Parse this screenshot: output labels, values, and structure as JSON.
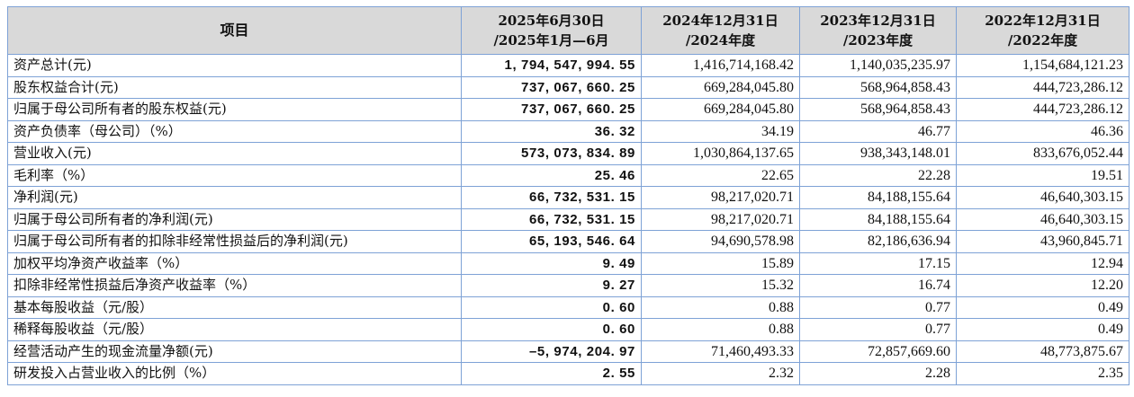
{
  "header": {
    "item": "项目",
    "cols": [
      {
        "l1": "2025年6月30日",
        "l2": "/2025年1月—6月"
      },
      {
        "l1": "2024年12月31日",
        "l2": "/2024年度"
      },
      {
        "l1": "2023年12月31日",
        "l2": "/2023年度"
      },
      {
        "l1": "2022年12月31日",
        "l2": "/2022年度"
      }
    ]
  },
  "rows": [
    {
      "label": "资产总计(元)",
      "v": [
        "1, 794, 547, 994. 55",
        "1,416,714,168.42",
        "1,140,035,235.97",
        "1,154,684,121.23"
      ]
    },
    {
      "label": "股东权益合计(元)",
      "v": [
        "737, 067, 660. 25",
        "669,284,045.80",
        "568,964,858.43",
        "444,723,286.12"
      ]
    },
    {
      "label": "归属于母公司所有者的股东权益(元)",
      "v": [
        "737, 067, 660. 25",
        "669,284,045.80",
        "568,964,858.43",
        "444,723,286.12"
      ]
    },
    {
      "label": "资产负债率（母公司）（%）",
      "v": [
        "36. 32",
        "34.19",
        "46.77",
        "46.36"
      ]
    },
    {
      "label": "营业收入(元)",
      "v": [
        "573, 073, 834. 89",
        "1,030,864,137.65",
        "938,343,148.01",
        "833,676,052.44"
      ]
    },
    {
      "label": "毛利率（%）",
      "v": [
        "25. 46",
        "22.65",
        "22.28",
        "19.51"
      ]
    },
    {
      "label": "净利润(元)",
      "v": [
        "66, 732, 531. 15",
        "98,217,020.71",
        "84,188,155.64",
        "46,640,303.15"
      ]
    },
    {
      "label": "归属于母公司所有者的净利润(元)",
      "v": [
        "66, 732, 531. 15",
        "98,217,020.71",
        "84,188,155.64",
        "46,640,303.15"
      ]
    },
    {
      "label": "归属于母公司所有者的扣除非经常性损益后的净利润(元)",
      "v": [
        "65, 193, 546. 64",
        "94,690,578.98",
        "82,186,636.94",
        "43,960,845.71"
      ]
    },
    {
      "label": "加权平均净资产收益率（%）",
      "v": [
        "9. 49",
        "15.89",
        "17.15",
        "12.94"
      ]
    },
    {
      "label": "扣除非经常性损益后净资产收益率（%）",
      "v": [
        "9. 27",
        "15.32",
        "16.74",
        "12.20"
      ]
    },
    {
      "label": "基本每股收益（元/股）",
      "v": [
        "0. 60",
        "0.88",
        "0.77",
        "0.49"
      ]
    },
    {
      "label": "稀释每股收益（元/股）",
      "v": [
        "0. 60",
        "0.88",
        "0.77",
        "0.49"
      ]
    },
    {
      "label": "经营活动产生的现金流量净额(元)",
      "v": [
        "–5, 974, 204. 97",
        "71,460,493.33",
        "72,857,669.60",
        "48,773,875.67"
      ]
    },
    {
      "label": "研发投入占营业收入的比例（%）",
      "v": [
        "2. 55",
        "2.32",
        "2.28",
        "2.35"
      ]
    }
  ]
}
